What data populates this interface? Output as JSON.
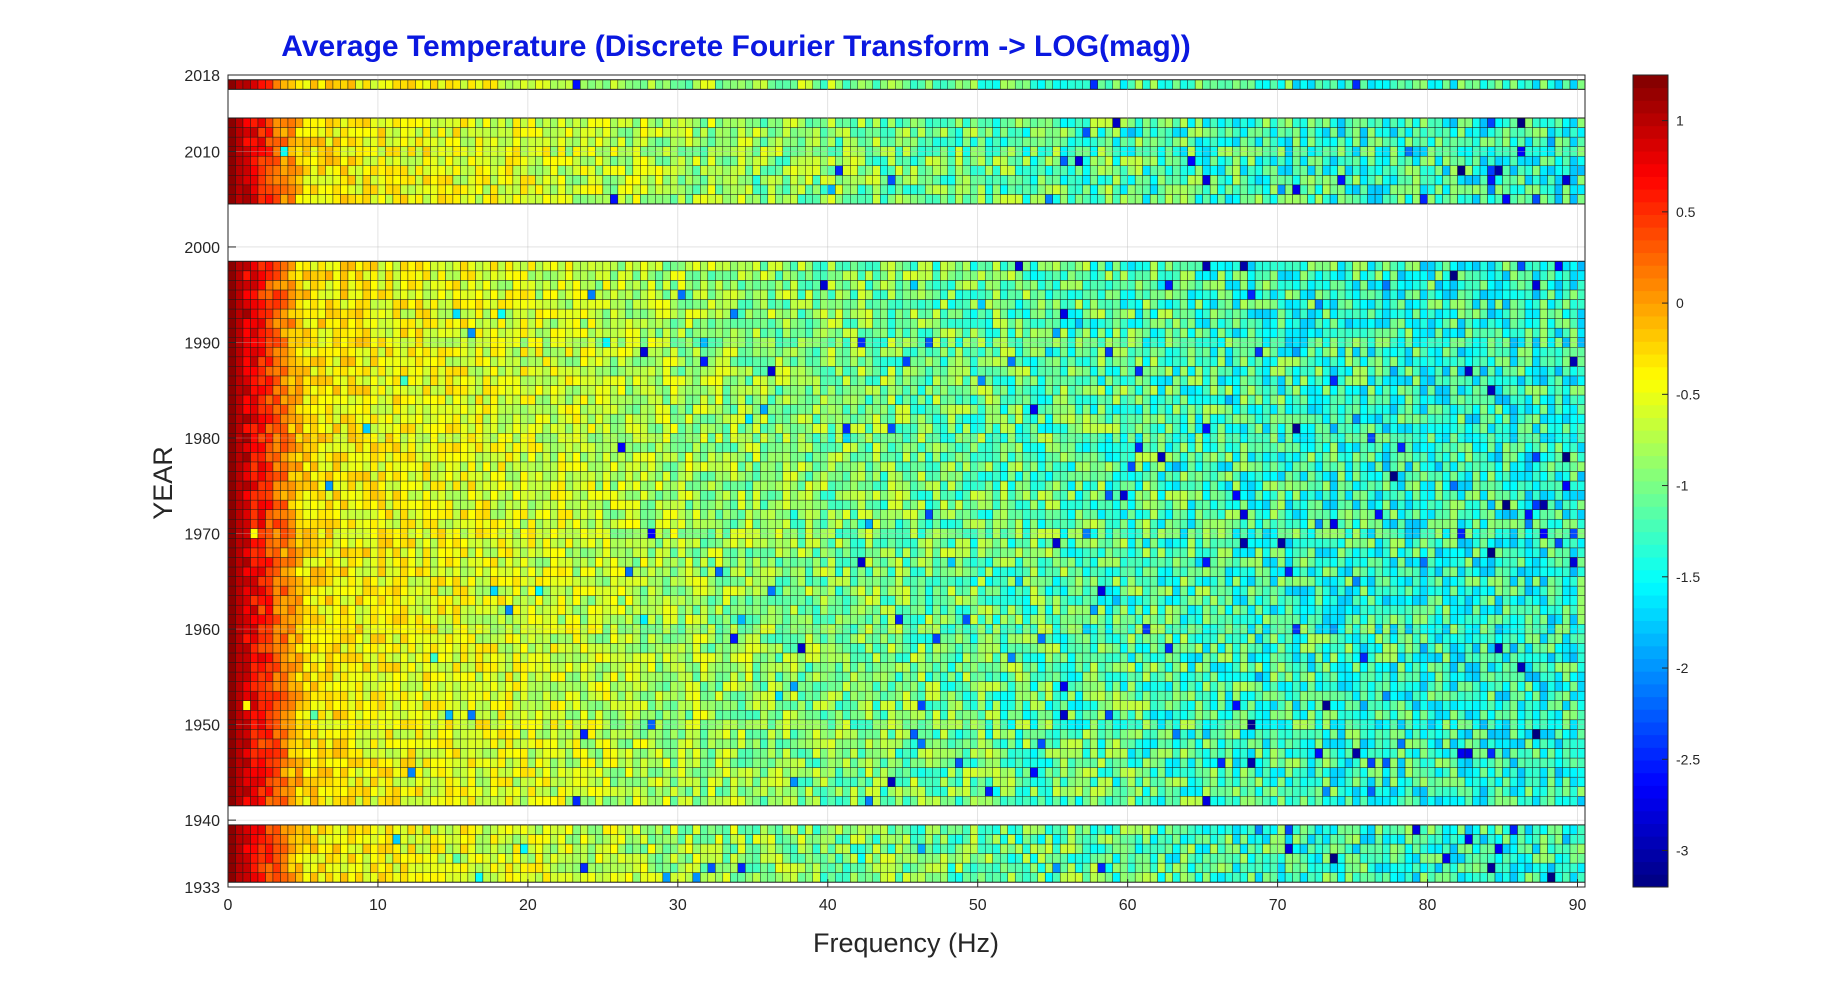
{
  "chart_data": {
    "type": "heatmap",
    "title": "Average Temperature (Discrete Fourier Transform -> LOG(mag))",
    "xlabel": "Frequency (Hz)",
    "ylabel": "YEAR",
    "xlim": [
      0,
      90.5
    ],
    "ylim": [
      1933,
      2018
    ],
    "x_ticks": [
      "0",
      "10",
      "20",
      "30",
      "40",
      "50",
      "60",
      "70",
      "80",
      "90"
    ],
    "y_ticks": [
      "1933",
      "1940",
      "1950",
      "1960",
      "1970",
      "1980",
      "1990",
      "2000",
      "2010",
      "2018"
    ],
    "grid": true,
    "colormap": "jet",
    "color_range": [
      -3.2,
      1.25
    ],
    "colorbar_ticks": [
      "1",
      "0.5",
      "0",
      "-0.5",
      "-1",
      "-1.5",
      "-2",
      "-2.5",
      "-3"
    ],
    "frequency_bins": 181,
    "frequency_step": 0.5,
    "year_blocks": [
      {
        "from": 1934,
        "to": 1939
      },
      {
        "from": 1942,
        "to": 1998
      },
      {
        "from": 2005,
        "to": 2013
      },
      {
        "from": 2017,
        "to": 2017
      }
    ],
    "trend": {
      "description": "log magnitude by frequency",
      "frequency": [
        0,
        0.5,
        5,
        10,
        20,
        30,
        40,
        50,
        60,
        70,
        80,
        90
      ],
      "log_magnitude": [
        1.2,
        1.0,
        -0.3,
        -0.45,
        -0.6,
        -0.8,
        -0.95,
        -1.05,
        -1.15,
        -1.25,
        -1.3,
        -1.35
      ]
    }
  }
}
